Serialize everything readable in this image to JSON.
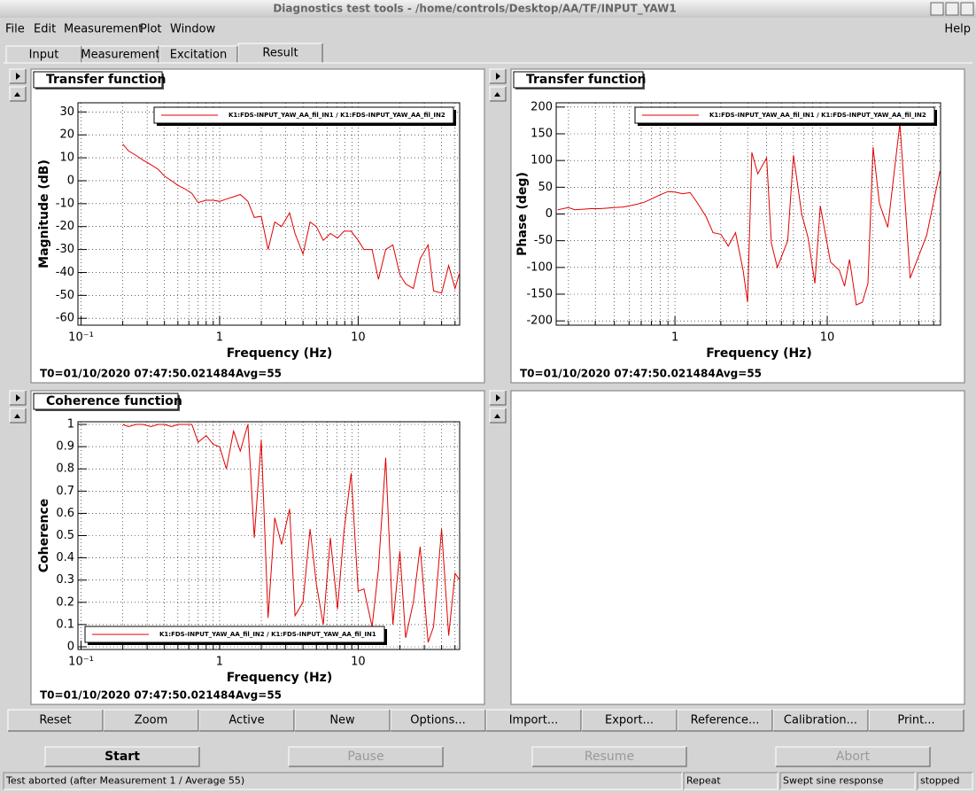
{
  "window": {
    "title": "Diagnostics test tools - /home/controls/Desktop/AA/TF/INPUT_YAW1"
  },
  "menu": [
    "File",
    "Edit",
    "Measurement",
    "Plot",
    "Window"
  ],
  "help": "Help",
  "tabs": [
    "Input",
    "Measurement",
    "Excitation",
    "Result"
  ],
  "plot_buttons": [
    "Reset",
    "Zoom",
    "Active",
    "New",
    "Options...",
    "Import...",
    "Export...",
    "Reference...",
    "Calibration...",
    "Print..."
  ],
  "run_buttons": [
    "Start",
    "Pause",
    "Resume",
    "Abort"
  ],
  "status": [
    "Test aborted (after Measurement 1 / Average 55)",
    "Repeat",
    "Swept sine response",
    "stopped"
  ],
  "chart_data": [
    {
      "type": "line",
      "title": "Transfer function",
      "xlabel": "Frequency (Hz)",
      "ylabel": "Magnitude (dB)",
      "t0": "T0=01/10/2020 07:47:50.021484",
      "avg": "Avg=55",
      "xlog": true,
      "grid": true,
      "legend": "upper right",
      "xlim": [
        0.095,
        54
      ],
      "ylim": [
        -63,
        34
      ],
      "xticks": [
        {
          "value": 0.1,
          "label": "10⁻¹"
        },
        1,
        10
      ],
      "xminorticks": [
        0.2,
        0.3,
        0.4,
        0.5,
        0.6,
        0.7,
        0.8,
        0.9,
        2,
        3,
        4,
        5,
        6,
        7,
        8,
        9,
        20,
        30,
        40,
        50
      ],
      "yticks": [
        -60,
        -50,
        -40,
        -30,
        -20,
        -10,
        0,
        10,
        20,
        30
      ],
      "x": [
        0.2,
        0.22,
        0.25,
        0.28,
        0.32,
        0.36,
        0.4,
        0.45,
        0.5,
        0.56,
        0.63,
        0.7,
        0.8,
        0.9,
        1.0,
        1.12,
        1.26,
        1.41,
        1.6,
        1.78,
        2.0,
        2.24,
        2.5,
        2.8,
        3.2,
        3.5,
        4.0,
        4.5,
        5.0,
        5.6,
        6.3,
        7.1,
        7.9,
        8.9,
        10,
        11,
        12.6,
        14,
        15.8,
        17.8,
        20,
        22,
        25,
        28,
        32,
        35,
        40,
        45,
        50,
        54
      ],
      "series": [
        {
          "name": "K1:FDS-INPUT_YAW_AA_fil_IN1 / K1:FDS-INPUT_YAW_AA_fil_IN2",
          "color": "#e00000",
          "values": [
            16,
            13,
            11,
            9,
            7,
            5,
            2,
            0,
            -2,
            -3.5,
            -5.5,
            -9.5,
            -8.5,
            -8.5,
            -9,
            -8,
            -7,
            -6,
            -9,
            -16,
            -15.5,
            -30,
            -18,
            -20,
            -14,
            -23,
            -32,
            -18,
            -20,
            -26,
            -23,
            -25,
            -22,
            -22,
            -26,
            -30,
            -30,
            -43,
            -30,
            -28,
            -41,
            -45,
            -47,
            -34,
            -28,
            -48,
            -49,
            -37,
            -47,
            -40
          ]
        }
      ]
    },
    {
      "type": "line",
      "title": "Transfer function",
      "xlabel": "Frequency (Hz)",
      "ylabel": "Phase (deg)",
      "t0": "T0=01/10/2020 07:47:50.021484",
      "avg": "Avg=55",
      "xlog": true,
      "grid": true,
      "legend": "upper right",
      "xlim": [
        0.166,
        55.5
      ],
      "ylim": [
        -208,
        208
      ],
      "xticks": [
        1,
        10
      ],
      "xminorticks": [
        0.2,
        0.3,
        0.4,
        0.5,
        0.6,
        0.7,
        0.8,
        0.9,
        2,
        3,
        4,
        5,
        6,
        7,
        8,
        9,
        20,
        30,
        40,
        50
      ],
      "yticks": [
        -200,
        -150,
        -100,
        -50,
        0,
        50,
        100,
        150,
        200
      ],
      "x": [
        0.17,
        0.2,
        0.22,
        0.25,
        0.28,
        0.32,
        0.36,
        0.4,
        0.45,
        0.5,
        0.56,
        0.63,
        0.7,
        0.8,
        0.9,
        1.0,
        1.12,
        1.26,
        1.41,
        1.6,
        1.78,
        2.0,
        2.24,
        2.5,
        2.8,
        3.0,
        3.2,
        3.5,
        4.0,
        4.3,
        4.7,
        5.5,
        6.0,
        6.8,
        7.5,
        8.3,
        9,
        10.5,
        12,
        13,
        14,
        15.5,
        17,
        18.5,
        20,
        22,
        25,
        30,
        35,
        45,
        55
      ],
      "series": [
        {
          "name": "K1:FDS-INPUT_YAW_AA_fil_IN1 / K1:FDS-INPUT_YAW_AA_fil_IN2",
          "color": "#e00000",
          "values": [
            8,
            12,
            8,
            9,
            10,
            10,
            11,
            12,
            13,
            15,
            18,
            22,
            28,
            36,
            42,
            41,
            38,
            40,
            20,
            -5,
            -35,
            -38,
            -60,
            -35,
            -105,
            -165,
            115,
            75,
            105,
            -55,
            -100,
            -50,
            110,
            0,
            -45,
            -130,
            15,
            -90,
            -105,
            -135,
            -85,
            -170,
            -165,
            -130,
            125,
            20,
            -25,
            170,
            -120,
            -40,
            80
          ]
        }
      ]
    },
    {
      "type": "line",
      "title": "Coherence function",
      "xlabel": "Frequency (Hz)",
      "ylabel": "Coherence",
      "t0": "T0=01/10/2020 07:47:50.021484",
      "avg": "Avg=55",
      "xlog": true,
      "grid": true,
      "legend": "lower left",
      "xlim": [
        0.095,
        54
      ],
      "ylim": [
        -0.012,
        1.012
      ],
      "xticks": [
        {
          "value": 0.1,
          "label": "10⁻¹"
        },
        1,
        10
      ],
      "xminorticks": [
        0.2,
        0.3,
        0.4,
        0.5,
        0.6,
        0.7,
        0.8,
        0.9,
        2,
        3,
        4,
        5,
        6,
        7,
        8,
        9,
        20,
        30,
        40,
        50
      ],
      "yticks": [
        0,
        0.1,
        0.2,
        0.3,
        0.4,
        0.5,
        0.6,
        0.7,
        0.8,
        0.9,
        1
      ],
      "x": [
        0.2,
        0.22,
        0.25,
        0.28,
        0.32,
        0.36,
        0.4,
        0.45,
        0.5,
        0.56,
        0.63,
        0.7,
        0.8,
        0.9,
        1.0,
        1.12,
        1.26,
        1.41,
        1.6,
        1.78,
        2.0,
        2.24,
        2.5,
        2.8,
        3.2,
        3.5,
        4.0,
        4.5,
        5.0,
        5.6,
        6.3,
        7.1,
        7.9,
        8.9,
        10,
        11,
        12.6,
        14,
        15.8,
        17.8,
        20,
        22,
        25,
        28,
        32,
        35,
        40,
        45,
        50,
        54
      ],
      "series": [
        {
          "name": "K1:FDS-INPUT_YAW_AA_fil_IN2 / K1:FDS-INPUT_YAW_AA_fil_IN1",
          "color": "#e00000",
          "values": [
            1,
            0.99,
            1,
            1,
            0.99,
            1,
            1,
            0.99,
            1,
            1,
            1,
            0.92,
            0.95,
            0.91,
            0.9,
            0.8,
            0.97,
            0.88,
            1,
            0.49,
            0.93,
            0.13,
            0.58,
            0.46,
            0.62,
            0.14,
            0.2,
            0.53,
            0.28,
            0.1,
            0.49,
            0.17,
            0.52,
            0.78,
            0.25,
            0.26,
            0.09,
            0.35,
            0.85,
            0.1,
            0.43,
            0.04,
            0.2,
            0.45,
            0.02,
            0.09,
            0.53,
            0.05,
            0.33,
            0.3
          ]
        }
      ]
    }
  ]
}
